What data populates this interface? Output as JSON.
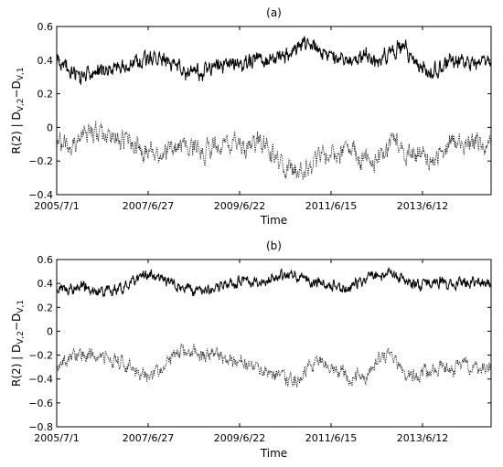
{
  "chart_data": [
    {
      "type": "line",
      "panel_label": "(a)",
      "title": "",
      "xlabel": "Time",
      "ylabel": "R(2) | D_{V,2}−D_{V,1}",
      "ylabel_parts": {
        "main": "R(2) | D",
        "sub1": "V,2",
        "mid": "−D",
        "sub2": "V,1"
      },
      "x_range": [
        "2005-07-01",
        "2015-06-30"
      ],
      "x_ticks": [
        "2005/7/1",
        "2007/6/27",
        "2009/6/22",
        "2011/6/15",
        "2013/6/12"
      ],
      "ylim": [
        -0.4,
        0.6
      ],
      "y_ticks": [
        "−0.4",
        "−0.2",
        "0",
        "0.2",
        "0.4",
        "0.6"
      ],
      "y_tick_values": [
        -0.4,
        -0.2,
        0,
        0.2,
        0.4,
        0.6
      ],
      "grid": false,
      "legend": "none",
      "series": [
        {
          "style": "solid",
          "color": "#000000",
          "x": [
            "2005-07",
            "2005-11",
            "2006-03",
            "2006-07",
            "2006-11",
            "2007-03",
            "2007-07",
            "2007-11",
            "2008-03",
            "2008-07",
            "2008-11",
            "2009-03",
            "2009-07",
            "2009-11",
            "2010-03",
            "2010-07",
            "2010-11",
            "2011-03",
            "2011-07",
            "2011-11",
            "2012-03",
            "2012-07",
            "2012-11",
            "2013-03",
            "2013-07",
            "2013-11",
            "2014-03",
            "2014-07",
            "2014-11",
            "2015-03",
            "2015-06"
          ],
          "y": [
            0.4,
            0.33,
            0.3,
            0.35,
            0.34,
            0.37,
            0.42,
            0.4,
            0.38,
            0.33,
            0.31,
            0.36,
            0.38,
            0.4,
            0.39,
            0.41,
            0.45,
            0.52,
            0.48,
            0.44,
            0.4,
            0.43,
            0.38,
            0.46,
            0.47,
            0.36,
            0.32,
            0.38,
            0.4,
            0.38,
            0.37
          ]
        },
        {
          "style": "dotted",
          "color": "#000000",
          "x": [
            "2005-07",
            "2005-11",
            "2006-03",
            "2006-07",
            "2006-11",
            "2007-03",
            "2007-07",
            "2007-11",
            "2008-03",
            "2008-07",
            "2008-11",
            "2009-03",
            "2009-07",
            "2009-11",
            "2010-03",
            "2010-07",
            "2010-11",
            "2011-03",
            "2011-07",
            "2011-11",
            "2012-03",
            "2012-07",
            "2012-11",
            "2013-03",
            "2013-07",
            "2013-11",
            "2014-03",
            "2014-07",
            "2014-11",
            "2015-03",
            "2015-06"
          ],
          "y": [
            -0.1,
            -0.12,
            -0.03,
            -0.06,
            -0.05,
            -0.08,
            -0.15,
            -0.16,
            -0.11,
            -0.1,
            -0.14,
            -0.12,
            -0.1,
            -0.11,
            -0.09,
            -0.17,
            -0.26,
            -0.24,
            -0.18,
            -0.15,
            -0.13,
            -0.18,
            -0.22,
            -0.05,
            -0.14,
            -0.16,
            -0.2,
            -0.12,
            -0.08,
            -0.1,
            -0.09
          ]
        }
      ]
    },
    {
      "type": "line",
      "panel_label": "(b)",
      "title": "",
      "xlabel": "Time",
      "ylabel": "R(2) | D_{V,2}−D_{V,1}",
      "ylabel_parts": {
        "main": "R(2) | D",
        "sub1": "V,2",
        "mid": "−D",
        "sub2": "V,1"
      },
      "x_range": [
        "2005-07-01",
        "2015-06-30"
      ],
      "x_ticks": [
        "2005/7/1",
        "2007/6/27",
        "2009/6/22",
        "2011/6/15",
        "2013/6/12"
      ],
      "ylim": [
        -0.8,
        0.6
      ],
      "y_ticks": [
        "−0.8",
        "−0.6",
        "−0.4",
        "−0.2",
        "0",
        "0.2",
        "0.4",
        "0.6"
      ],
      "y_tick_values": [
        -0.8,
        -0.6,
        -0.4,
        -0.2,
        0,
        0.2,
        0.4,
        0.6
      ],
      "grid": false,
      "legend": "none",
      "series": [
        {
          "style": "solid",
          "color": "#000000",
          "x": [
            "2005-07",
            "2005-11",
            "2006-03",
            "2006-07",
            "2006-11",
            "2007-03",
            "2007-07",
            "2007-11",
            "2008-03",
            "2008-07",
            "2008-11",
            "2009-03",
            "2009-07",
            "2009-11",
            "2010-03",
            "2010-07",
            "2010-11",
            "2011-03",
            "2011-07",
            "2011-11",
            "2012-03",
            "2012-07",
            "2012-11",
            "2013-03",
            "2013-07",
            "2013-11",
            "2014-03",
            "2014-07",
            "2014-11",
            "2015-03",
            "2015-06"
          ],
          "y": [
            0.36,
            0.35,
            0.38,
            0.34,
            0.36,
            0.4,
            0.46,
            0.44,
            0.38,
            0.36,
            0.34,
            0.36,
            0.4,
            0.42,
            0.39,
            0.44,
            0.48,
            0.44,
            0.4,
            0.38,
            0.36,
            0.44,
            0.47,
            0.49,
            0.4,
            0.38,
            0.42,
            0.4,
            0.4,
            0.39,
            0.4
          ]
        },
        {
          "style": "dotted",
          "color": "#000000",
          "x": [
            "2005-07",
            "2005-11",
            "2006-03",
            "2006-07",
            "2006-11",
            "2007-03",
            "2007-07",
            "2007-11",
            "2008-03",
            "2008-07",
            "2008-11",
            "2009-03",
            "2009-07",
            "2009-11",
            "2010-03",
            "2010-07",
            "2010-11",
            "2011-03",
            "2011-07",
            "2011-11",
            "2012-03",
            "2012-07",
            "2012-11",
            "2013-03",
            "2013-07",
            "2013-11",
            "2014-03",
            "2014-07",
            "2014-11",
            "2015-03",
            "2015-06"
          ],
          "y": [
            -0.26,
            -0.22,
            -0.18,
            -0.2,
            -0.24,
            -0.3,
            -0.4,
            -0.36,
            -0.18,
            -0.16,
            -0.22,
            -0.2,
            -0.24,
            -0.28,
            -0.3,
            -0.36,
            -0.44,
            -0.34,
            -0.26,
            -0.28,
            -0.38,
            -0.4,
            -0.24,
            -0.18,
            -0.4,
            -0.36,
            -0.3,
            -0.32,
            -0.28,
            -0.3,
            -0.32
          ]
        }
      ]
    }
  ]
}
